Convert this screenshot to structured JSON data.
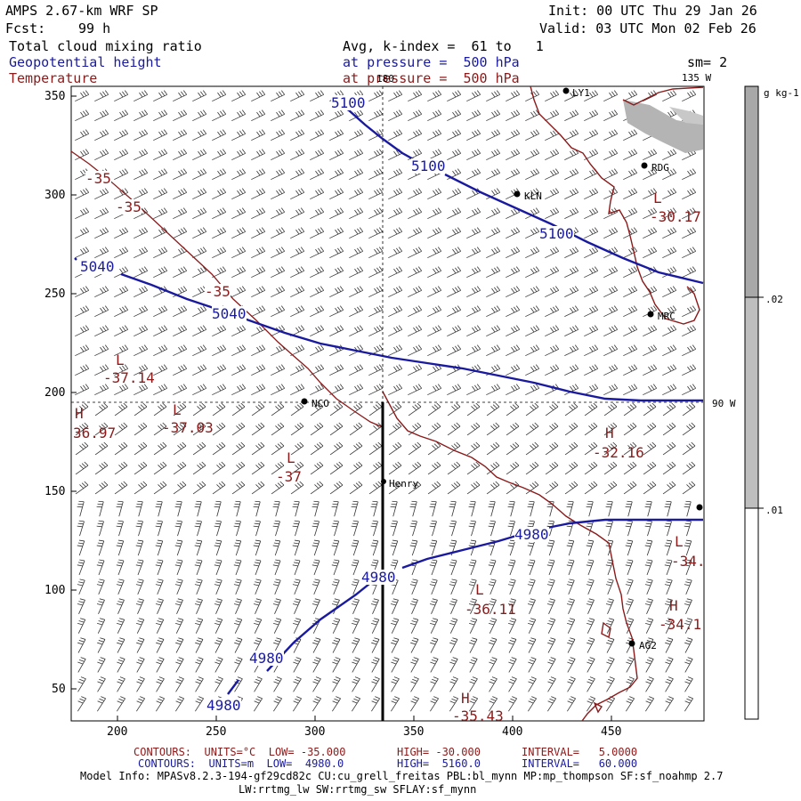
{
  "header": {
    "title": "AMPS 2.67-km WRF SP",
    "init": "Init: 00 UTC Thu 29 Jan 26",
    "fcst_label": "Fcst:",
    "fcst_value": "99 h",
    "valid": "Valid: 03 UTC Mon 02 Feb 26",
    "field1": "Total cloud mixing ratio",
    "field2": "Geopotential height",
    "field3": "Temperature",
    "avg": "Avg, k-index =  61 to   1",
    "pressure1": "at pressure =  500 hPa",
    "pressure2": "at pressure =  500 hPa",
    "sm": "sm= 2"
  },
  "colors": {
    "height": "#1a1aa0",
    "temperature": "#8b1a1a",
    "coast": "#8b1a1a",
    "shade": "#b4b4b4"
  },
  "axes": {
    "x_ticks": [
      "200",
      "250",
      "300",
      "350",
      "400",
      "450"
    ],
    "y_ticks": [
      "350",
      "300",
      "250",
      "200",
      "150",
      "100",
      "50"
    ],
    "lon_labels": {
      "top": "180",
      "top_right": "135 W",
      "right": "90 W"
    }
  },
  "colorbar": {
    "unit": "g kg-1",
    "labels": [
      ".02",
      ".01"
    ]
  },
  "stations": [
    {
      "name": "RDG"
    },
    {
      "name": "KLN"
    },
    {
      "name": "MRC"
    },
    {
      "name": "NCO"
    },
    {
      "name": "Henry"
    },
    {
      "name": "AG2"
    },
    {
      "name": "LY1"
    }
  ],
  "height_labels": [
    "5100",
    "5100",
    "5100",
    "5040",
    "5040",
    "4980",
    "4980",
    "4980",
    "4980"
  ],
  "temp_labels": [
    "-35",
    "-35",
    "-35",
    "L",
    "-37.14",
    "H",
    "36.97",
    "L",
    "-37.03",
    "L",
    "-37",
    "H",
    "-32.16",
    "L",
    "-30.17",
    "L",
    "-36.11",
    "L",
    "-34.",
    "H",
    "-34.1",
    "H",
    "-35.43"
  ],
  "footer": {
    "line1_a": "CONTOURS:  UNITS=°C  LOW= -35.000",
    "line1_b": "HIGH= -30.000",
    "line1_c": "INTERVAL=   5.0000",
    "line2_a": "CONTOURS:  UNITS=m  LOW=  4980.0",
    "line2_b": "HIGH=  5160.0",
    "line2_c": "INTERVAL=   60.000",
    "model1": "Model Info: MPASv8.2.3-194-gf29cd82c CU:cu_grell_freitas PBL:bl_mynn MP:mp_thompson SF:sf_noahmp 2.7",
    "model2": "LW:rrtmg_lw SW:rrtmg_sw SFLAY:sf_mynn"
  }
}
